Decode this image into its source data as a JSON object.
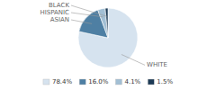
{
  "chart_data": {
    "type": "pie",
    "categories": [
      "WHITE",
      "ASIAN",
      "HISPANIC",
      "BLACK"
    ],
    "values": [
      78.4,
      16.0,
      4.1,
      1.5
    ],
    "value_labels": [
      "78.4%",
      "16.0%",
      "4.1%",
      "1.5%"
    ],
    "colors": [
      "#d6e3ef",
      "#4e7fa3",
      "#a2bfd4",
      "#1c3a55"
    ],
    "legend": "bottom"
  }
}
